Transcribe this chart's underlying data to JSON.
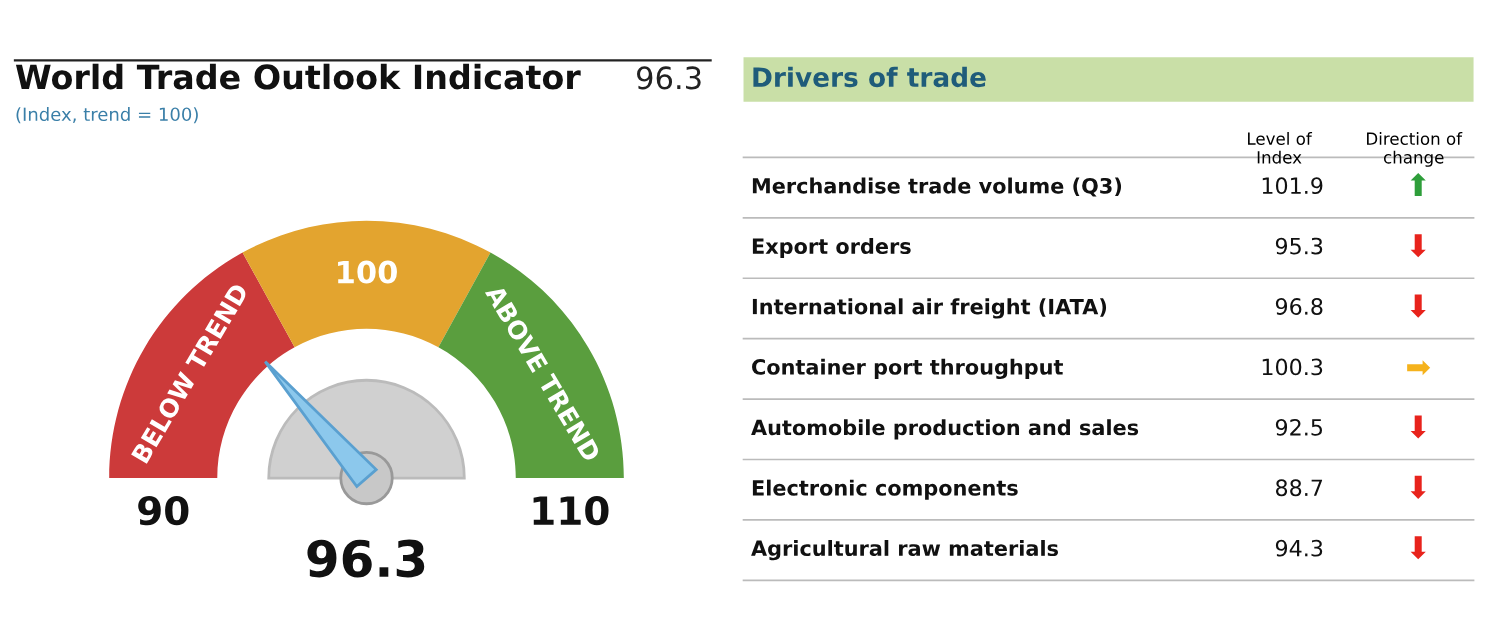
{
  "chart_data": [
    {
      "type": "donut",
      "title": "World Trade Outlook Indicator",
      "subtitle": "(Index, trend = 100)",
      "categories": [
        "BELOW TREND",
        "100",
        "ABOVE TREND"
      ],
      "values": [
        34,
        32,
        34
      ],
      "colors": [
        "#cc3a3a",
        "#e3a42f",
        "#5a9e3e"
      ],
      "needle": "BELOW TREND",
      "annotations": [
        "96.3",
        "90",
        "110",
        "96.3"
      ]
    },
    {
      "type": "other",
      "title": "Drivers of trade",
      "annotations": [
        "Level of\nIndex",
        "Direction of\nchange",
        "Merchandise trade volume (Q3)",
        "101.9",
        "⬆",
        "Export orders",
        "95.3",
        "⬇",
        "International air freight (IATA)",
        "96.8",
        "⬇",
        "Container port throughput",
        "100.3",
        "➡",
        "Automobile production and sales",
        "92.5",
        "⬇",
        "Electronic components",
        "88.7",
        "⬇",
        "Agricultural raw materials",
        "94.3",
        "⬇"
      ],
      "colors": [
        "#2e9e3a",
        "#e8231c",
        "#e8231c",
        "#f5b21c",
        "#e8231c",
        "#e8231c",
        "#e8231c"
      ]
    }
  ]
}
